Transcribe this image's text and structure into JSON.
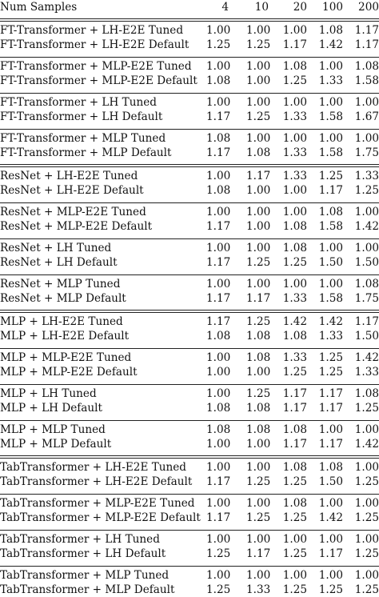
{
  "header": {
    "label": "Num Samples",
    "columns": [
      "4",
      "10",
      "20",
      "100",
      "200"
    ]
  },
  "groups": [
    {
      "rows": [
        {
          "label": "FT-Transformer + LH-E2E Tuned",
          "values": [
            "1.00",
            "1.00",
            "1.00",
            "1.08",
            "1.17"
          ]
        },
        {
          "label": "FT-Transformer + LH-E2E Default",
          "values": [
            "1.25",
            "1.25",
            "1.17",
            "1.42",
            "1.17"
          ]
        }
      ]
    },
    {
      "rows": [
        {
          "label": "FT-Transformer + MLP-E2E Tuned",
          "values": [
            "1.00",
            "1.00",
            "1.08",
            "1.00",
            "1.08"
          ]
        },
        {
          "label": "FT-Transformer + MLP-E2E Default",
          "values": [
            "1.08",
            "1.00",
            "1.25",
            "1.33",
            "1.58"
          ]
        }
      ]
    },
    {
      "rows": [
        {
          "label": "FT-Transformer + LH Tuned",
          "values": [
            "1.00",
            "1.00",
            "1.00",
            "1.00",
            "1.00"
          ]
        },
        {
          "label": "FT-Transformer + LH Default",
          "values": [
            "1.17",
            "1.25",
            "1.33",
            "1.58",
            "1.67"
          ]
        }
      ]
    },
    {
      "rows": [
        {
          "label": "FT-Transformer + MLP Tuned",
          "values": [
            "1.08",
            "1.00",
            "1.00",
            "1.00",
            "1.00"
          ]
        },
        {
          "label": "FT-Transformer + MLP Default",
          "values": [
            "1.17",
            "1.08",
            "1.33",
            "1.58",
            "1.75"
          ]
        }
      ]
    },
    {
      "rows": [
        {
          "label": "ResNet + LH-E2E Tuned",
          "values": [
            "1.00",
            "1.17",
            "1.33",
            "1.25",
            "1.33"
          ]
        },
        {
          "label": "ResNet + LH-E2E Default",
          "values": [
            "1.08",
            "1.00",
            "1.00",
            "1.17",
            "1.25"
          ]
        }
      ]
    },
    {
      "rows": [
        {
          "label": "ResNet + MLP-E2E Tuned",
          "values": [
            "1.00",
            "1.00",
            "1.00",
            "1.08",
            "1.00"
          ]
        },
        {
          "label": "ResNet + MLP-E2E Default",
          "values": [
            "1.17",
            "1.00",
            "1.08",
            "1.58",
            "1.42"
          ]
        }
      ]
    },
    {
      "rows": [
        {
          "label": "ResNet + LH Tuned",
          "values": [
            "1.00",
            "1.00",
            "1.08",
            "1.00",
            "1.00"
          ]
        },
        {
          "label": "ResNet + LH Default",
          "values": [
            "1.17",
            "1.25",
            "1.25",
            "1.50",
            "1.50"
          ]
        }
      ]
    },
    {
      "rows": [
        {
          "label": "ResNet + MLP Tuned",
          "values": [
            "1.00",
            "1.00",
            "1.00",
            "1.00",
            "1.08"
          ]
        },
        {
          "label": "ResNet + MLP Default",
          "values": [
            "1.17",
            "1.17",
            "1.33",
            "1.58",
            "1.75"
          ]
        }
      ]
    },
    {
      "rows": [
        {
          "label": "MLP + LH-E2E Tuned",
          "values": [
            "1.17",
            "1.25",
            "1.42",
            "1.42",
            "1.17"
          ]
        },
        {
          "label": "MLP + LH-E2E Default",
          "values": [
            "1.08",
            "1.08",
            "1.08",
            "1.33",
            "1.50"
          ]
        }
      ]
    },
    {
      "rows": [
        {
          "label": "MLP + MLP-E2E Tuned",
          "values": [
            "1.00",
            "1.08",
            "1.33",
            "1.25",
            "1.42"
          ]
        },
        {
          "label": "MLP + MLP-E2E Default",
          "values": [
            "1.00",
            "1.00",
            "1.25",
            "1.25",
            "1.33"
          ]
        }
      ]
    },
    {
      "rows": [
        {
          "label": "MLP + LH Tuned",
          "values": [
            "1.00",
            "1.25",
            "1.17",
            "1.17",
            "1.08"
          ]
        },
        {
          "label": "MLP + LH Default",
          "values": [
            "1.08",
            "1.08",
            "1.17",
            "1.17",
            "1.25"
          ]
        }
      ]
    },
    {
      "rows": [
        {
          "label": "MLP + MLP Tuned",
          "values": [
            "1.08",
            "1.08",
            "1.08",
            "1.00",
            "1.00"
          ]
        },
        {
          "label": "MLP + MLP Default",
          "values": [
            "1.00",
            "1.00",
            "1.17",
            "1.17",
            "1.42"
          ]
        }
      ]
    },
    {
      "rows": [
        {
          "label": "TabTransformer + LH-E2E Tuned",
          "values": [
            "1.00",
            "1.00",
            "1.08",
            "1.08",
            "1.00"
          ]
        },
        {
          "label": "TabTransformer + LH-E2E Default",
          "values": [
            "1.17",
            "1.25",
            "1.25",
            "1.50",
            "1.25"
          ]
        }
      ]
    },
    {
      "rows": [
        {
          "label": "TabTransformer + MLP-E2E Tuned",
          "values": [
            "1.00",
            "1.00",
            "1.08",
            "1.00",
            "1.00"
          ]
        },
        {
          "label": "TabTransformer + MLP-E2E Default",
          "values": [
            "1.17",
            "1.25",
            "1.25",
            "1.42",
            "1.25"
          ]
        }
      ]
    },
    {
      "rows": [
        {
          "label": "TabTransformer + LH Tuned",
          "values": [
            "1.00",
            "1.00",
            "1.00",
            "1.00",
            "1.00"
          ]
        },
        {
          "label": "TabTransformer + LH Default",
          "values": [
            "1.25",
            "1.17",
            "1.25",
            "1.17",
            "1.25"
          ]
        }
      ]
    },
    {
      "rows": [
        {
          "label": "TabTransformer + MLP Tuned",
          "values": [
            "1.00",
            "1.00",
            "1.00",
            "1.00",
            "1.00"
          ]
        },
        {
          "label": "TabTransformer + MLP Default",
          "values": [
            "1.25",
            "1.33",
            "1.25",
            "1.25",
            "1.25"
          ]
        }
      ]
    }
  ]
}
